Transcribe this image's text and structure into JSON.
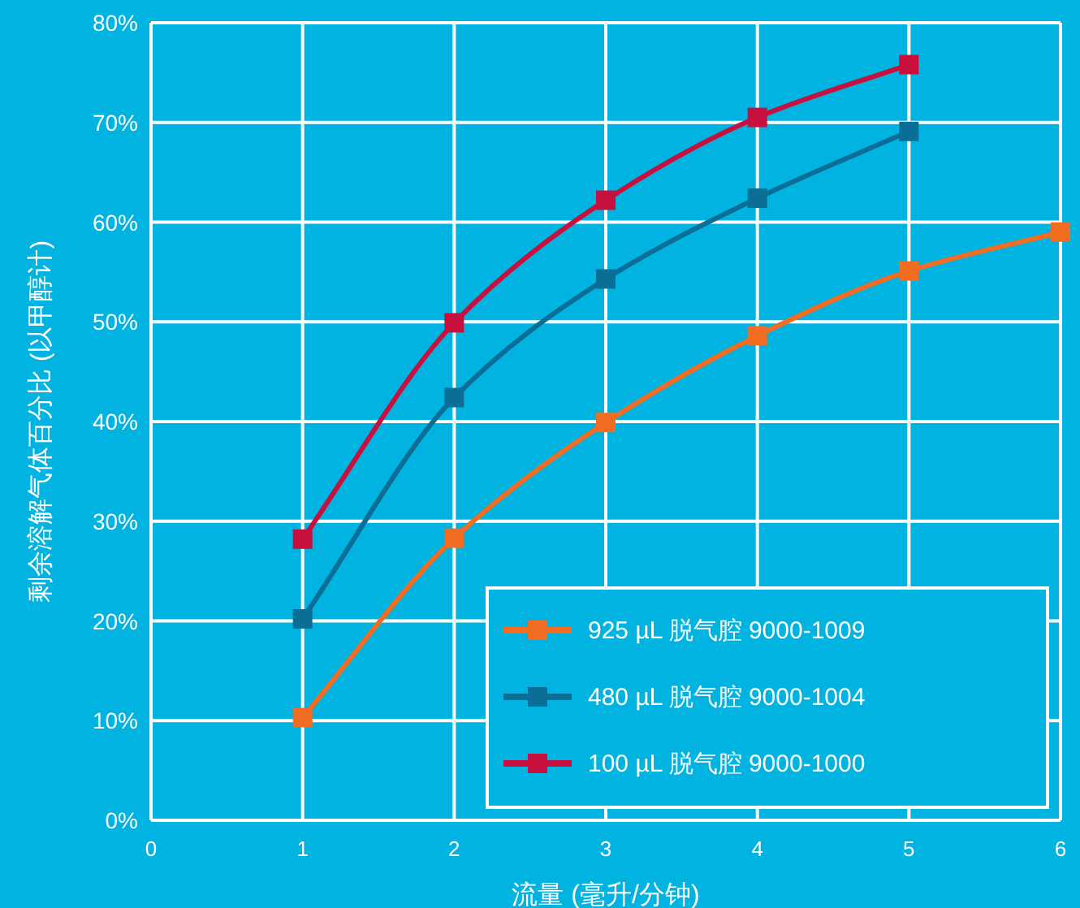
{
  "chart_data": {
    "type": "line",
    "xlabel": "流量 (毫升/分钟)",
    "ylabel": "剩余溶解气体百分比 (以甲醇计)",
    "xlim": [
      0,
      6
    ],
    "xticks": [
      0,
      1,
      2,
      3,
      4,
      5,
      6
    ],
    "ylim": [
      0,
      80
    ],
    "yticks": [
      {
        "value": 0,
        "label": "0%"
      },
      {
        "value": 10,
        "label": "10%"
      },
      {
        "value": 20,
        "label": "20%"
      },
      {
        "value": 30,
        "label": "30%"
      },
      {
        "value": 40,
        "label": "40%"
      },
      {
        "value": 50,
        "label": "50%"
      },
      {
        "value": 60,
        "label": "60%"
      },
      {
        "value": 70,
        "label": "70%"
      },
      {
        "value": 80,
        "label": "80%"
      }
    ],
    "grid": true,
    "legend": "bottom right",
    "marker": "square",
    "line_style": "solid",
    "series": [
      {
        "name": "925 µL 脱气腔 9000-1009",
        "color": "#f26c22",
        "x": [
          1,
          2,
          3,
          4,
          5,
          6
        ],
        "values": [
          10.3,
          28.3,
          39.9,
          48.6,
          55.1,
          59.0
        ]
      },
      {
        "name": "480 µL 脱气腔 9000-1004",
        "color": "#0a6e96",
        "x": [
          1,
          2,
          3,
          4,
          5
        ],
        "values": [
          20.2,
          42.4,
          54.3,
          62.4,
          69.1
        ]
      },
      {
        "name": "100 µL 脱气腔 9000-1000",
        "color": "#c8103f",
        "x": [
          1,
          2,
          3,
          4,
          5
        ],
        "values": [
          28.2,
          49.9,
          62.2,
          70.5,
          75.8
        ]
      }
    ]
  }
}
